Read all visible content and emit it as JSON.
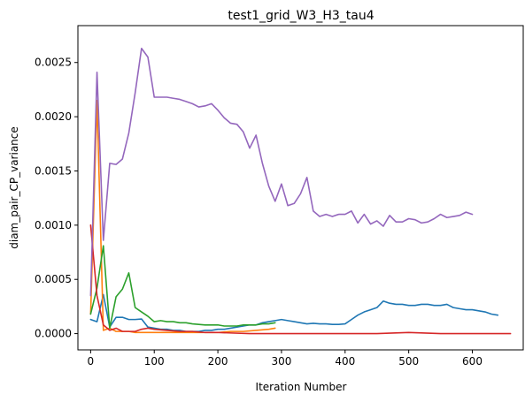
{
  "chart_data": {
    "type": "line",
    "title": "test1_grid_W3_H3_tau4",
    "xlabel": "Iteration Number",
    "ylabel": "diam_pair_CP_variance",
    "xlim": [
      -20,
      680
    ],
    "ylim": [
      -0.00015,
      0.00284
    ],
    "xticks": [
      0,
      100,
      200,
      300,
      400,
      500,
      600
    ],
    "xtick_labels": [
      "0",
      "100",
      "200",
      "300",
      "400",
      "500",
      "600"
    ],
    "yticks": [
      0,
      0.0005,
      0.001,
      0.0015,
      0.002,
      0.0025
    ],
    "ytick_labels": [
      "0.0000",
      "0.0005",
      "0.0010",
      "0.0015",
      "0.0020",
      "0.0025"
    ],
    "grid": false,
    "legend": false,
    "series": [
      {
        "color": "#1f77b4",
        "x": [
          0,
          10,
          20,
          30,
          40,
          50,
          60,
          70,
          80,
          90,
          100,
          110,
          120,
          130,
          140,
          150,
          160,
          170,
          180,
          190,
          200,
          210,
          220,
          230,
          240,
          250,
          260,
          270,
          280,
          290,
          300,
          310,
          320,
          330,
          340,
          350,
          360,
          370,
          380,
          390,
          400,
          410,
          420,
          430,
          440,
          450,
          460,
          470,
          480,
          490,
          500,
          510,
          520,
          530,
          540,
          550,
          560,
          570,
          580,
          590,
          600,
          610,
          620,
          630,
          640
        ],
        "y": [
          0.00013,
          0.00011,
          0.00036,
          6e-05,
          0.00015,
          0.00015,
          0.00013,
          0.00013,
          0.000135,
          6e-05,
          5e-05,
          4e-05,
          4e-05,
          3e-05,
          3e-05,
          2e-05,
          2e-05,
          2e-05,
          3e-05,
          3e-05,
          4e-05,
          4e-05,
          5e-05,
          6e-05,
          7e-05,
          8e-05,
          8e-05,
          0.0001,
          0.00011,
          0.00012,
          0.00013,
          0.00012,
          0.00011,
          0.0001,
          9e-05,
          9.5e-05,
          9e-05,
          9e-05,
          8.5e-05,
          8.5e-05,
          9e-05,
          0.00013,
          0.00017,
          0.0002,
          0.00022,
          0.00024,
          0.0003,
          0.00028,
          0.00027,
          0.00027,
          0.00026,
          0.00026,
          0.00027,
          0.00027,
          0.00026,
          0.00026,
          0.00027,
          0.00024,
          0.00023,
          0.00022,
          0.00022,
          0.00021,
          0.0002,
          0.00018,
          0.00017
        ]
      },
      {
        "color": "#ff7f0e",
        "x": [
          0,
          10,
          20,
          30,
          40,
          50,
          60,
          70,
          80,
          90,
          100,
          120,
          140,
          160,
          180,
          200,
          220,
          240,
          260,
          280,
          290
        ],
        "y": [
          0.00018,
          0.00215,
          3e-05,
          5e-05,
          2e-05,
          2e-05,
          2e-05,
          1e-05,
          1e-05,
          1e-05,
          1e-05,
          1e-05,
          1e-05,
          1e-05,
          1e-05,
          1e-05,
          2e-05,
          2e-05,
          3e-05,
          4e-05,
          5e-05
        ]
      },
      {
        "color": "#2ca02c",
        "x": [
          0,
          10,
          20,
          30,
          40,
          50,
          60,
          70,
          80,
          90,
          100,
          110,
          120,
          130,
          140,
          150,
          160,
          170,
          180,
          190,
          200,
          210,
          220,
          230,
          240,
          250,
          260,
          270,
          280,
          290
        ],
        "y": [
          0.00018,
          0.00042,
          0.00081,
          5e-05,
          0.00034,
          0.00041,
          0.00056,
          0.00024,
          0.0002,
          0.00016,
          0.00011,
          0.00012,
          0.00011,
          0.00011,
          0.0001,
          0.0001,
          9e-05,
          8.5e-05,
          8e-05,
          8e-05,
          8e-05,
          7e-05,
          7e-05,
          7e-05,
          8e-05,
          8e-05,
          8e-05,
          9e-05,
          9e-05,
          0.0001
        ]
      },
      {
        "color": "#d62728",
        "x": [
          0,
          10,
          20,
          30,
          40,
          50,
          60,
          70,
          80,
          90,
          100,
          120,
          140,
          160,
          180,
          200,
          250,
          300,
          350,
          400,
          450,
          500,
          550,
          600,
          660
        ],
        "y": [
          0.001,
          0.00035,
          8e-05,
          3e-05,
          5e-05,
          2e-05,
          2e-05,
          2e-05,
          4e-05,
          5e-05,
          4e-05,
          3e-05,
          2e-05,
          2e-05,
          1e-05,
          1e-05,
          0.0,
          0.0,
          0.0,
          0.0,
          0.0,
          1e-05,
          0.0,
          0.0,
          0.0
        ]
      },
      {
        "color": "#9467bd",
        "x": [
          0,
          10,
          20,
          30,
          40,
          50,
          60,
          70,
          80,
          90,
          100,
          110,
          120,
          130,
          140,
          150,
          160,
          170,
          180,
          190,
          200,
          210,
          220,
          230,
          240,
          250,
          260,
          270,
          280,
          290,
          300,
          310,
          320,
          330,
          340,
          350,
          360,
          370,
          380,
          390,
          400,
          410,
          420,
          430,
          440,
          450,
          460,
          470,
          480,
          490,
          500,
          510,
          520,
          530,
          540,
          550,
          560,
          570,
          580,
          590,
          600
        ],
        "y": [
          0.00035,
          0.00241,
          0.00086,
          0.00157,
          0.00156,
          0.00161,
          0.00185,
          0.00222,
          0.00263,
          0.00255,
          0.00218,
          0.00218,
          0.00218,
          0.00217,
          0.00216,
          0.00214,
          0.00212,
          0.00209,
          0.0021,
          0.00212,
          0.00206,
          0.00199,
          0.00194,
          0.00193,
          0.00186,
          0.00171,
          0.00183,
          0.00157,
          0.00136,
          0.00122,
          0.00138,
          0.00118,
          0.0012,
          0.00129,
          0.00144,
          0.00113,
          0.00108,
          0.0011,
          0.00108,
          0.0011,
          0.0011,
          0.00113,
          0.00102,
          0.0011,
          0.00101,
          0.00104,
          0.00099,
          0.00109,
          0.00103,
          0.00103,
          0.00106,
          0.00105,
          0.00102,
          0.00103,
          0.00106,
          0.0011,
          0.00107,
          0.00108,
          0.00109,
          0.00112,
          0.0011
        ]
      }
    ]
  }
}
